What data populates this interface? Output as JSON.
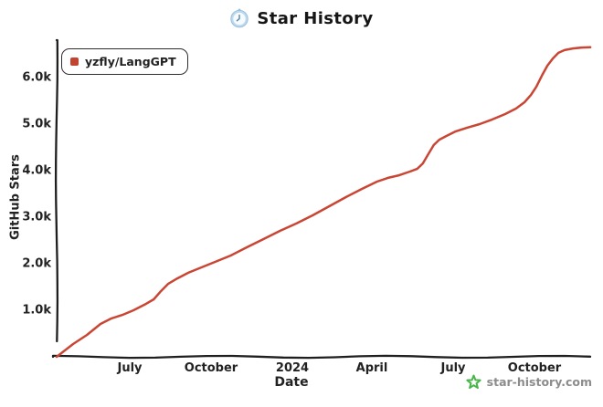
{
  "title": {
    "text": "Star History",
    "icon": "clock-icon"
  },
  "legend": {
    "items": [
      {
        "label": "yzfly/LangGPT",
        "color": "#c2432f"
      }
    ]
  },
  "axes": {
    "y_label": "GitHub Stars",
    "x_label": "Date"
  },
  "footer": {
    "brand": "star-history.com",
    "brand_color": "#46b648",
    "text_color": "#8c8c8c"
  },
  "colors": {
    "line": "#c94634",
    "axis": "#1f1f1f",
    "background": "#ffffff"
  },
  "chart_data": {
    "type": "line",
    "title": "Star History",
    "xlabel": "Date",
    "ylabel": "GitHub Stars",
    "x_unit": "decimal_year",
    "xlim": [
      2023.27,
      2024.935
    ],
    "ylim": [
      0,
      6725
    ],
    "grid": false,
    "legend_position": "top-left",
    "x_ticks": [
      {
        "pos": 2023.497,
        "label": "July"
      },
      {
        "pos": 2023.748,
        "label": "October"
      },
      {
        "pos": 2024.0,
        "label": "2024"
      },
      {
        "pos": 2024.247,
        "label": "April"
      },
      {
        "pos": 2024.499,
        "label": "July"
      },
      {
        "pos": 2024.751,
        "label": "October"
      }
    ],
    "y_ticks": [
      {
        "pos": 1000,
        "label": "1.0k"
      },
      {
        "pos": 2000,
        "label": "2.0k"
      },
      {
        "pos": 3000,
        "label": "3.0k"
      },
      {
        "pos": 4000,
        "label": "4.0k"
      },
      {
        "pos": 5000,
        "label": "5.0k"
      },
      {
        "pos": 6000,
        "label": "6.0k"
      }
    ],
    "series": [
      {
        "name": "yzfly/LangGPT",
        "color": "#c94634",
        "points": [
          [
            2023.27,
            0
          ],
          [
            2023.321,
            275
          ],
          [
            2023.364,
            470
          ],
          [
            2023.406,
            705
          ],
          [
            2023.44,
            825
          ],
          [
            2023.474,
            900
          ],
          [
            2023.508,
            1000
          ],
          [
            2023.542,
            1120
          ],
          [
            2023.571,
            1235
          ],
          [
            2023.593,
            1410
          ],
          [
            2023.616,
            1570
          ],
          [
            2023.644,
            1685
          ],
          [
            2023.678,
            1805
          ],
          [
            2023.718,
            1920
          ],
          [
            2023.761,
            2040
          ],
          [
            2023.809,
            2175
          ],
          [
            2023.86,
            2355
          ],
          [
            2023.911,
            2530
          ],
          [
            2023.962,
            2705
          ],
          [
            2024.013,
            2865
          ],
          [
            2024.064,
            3040
          ],
          [
            2024.115,
            3235
          ],
          [
            2024.166,
            3430
          ],
          [
            2024.217,
            3610
          ],
          [
            2024.263,
            3765
          ],
          [
            2024.297,
            3845
          ],
          [
            2024.331,
            3900
          ],
          [
            2024.365,
            3980
          ],
          [
            2024.388,
            4040
          ],
          [
            2024.405,
            4155
          ],
          [
            2024.422,
            4355
          ],
          [
            2024.439,
            4550
          ],
          [
            2024.456,
            4665
          ],
          [
            2024.478,
            4745
          ],
          [
            2024.507,
            4845
          ],
          [
            2024.541,
            4920
          ],
          [
            2024.581,
            5000
          ],
          [
            2024.62,
            5100
          ],
          [
            2024.66,
            5215
          ],
          [
            2024.694,
            5335
          ],
          [
            2024.72,
            5470
          ],
          [
            2024.74,
            5625
          ],
          [
            2024.757,
            5805
          ],
          [
            2024.774,
            6040
          ],
          [
            2024.791,
            6255
          ],
          [
            2024.808,
            6410
          ],
          [
            2024.825,
            6530
          ],
          [
            2024.844,
            6590
          ],
          [
            2024.87,
            6625
          ],
          [
            2024.898,
            6645
          ],
          [
            2024.924,
            6650
          ]
        ]
      }
    ]
  }
}
